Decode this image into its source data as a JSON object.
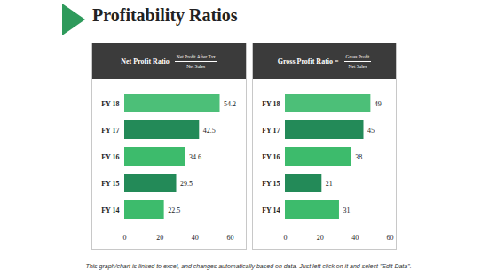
{
  "title": "Profitability Ratios",
  "caption": "This graph/chart is linked to excel, and changes automatically based on data. Just left click on it and select \"Edit Data\".",
  "chart_data": [
    {
      "type": "bar",
      "title": "Net Profit Ratio",
      "annotations": [
        "Net Profit After Tax",
        "Net Sales"
      ],
      "orientation": "horizontal",
      "categories": [
        "FY 18",
        "FY 17",
        "FY 16",
        "FY 15",
        "FY 14"
      ],
      "values": [
        54.2,
        42.5,
        34.6,
        29.5,
        22.5
      ],
      "colors": [
        "#4cbf78",
        "#238a58",
        "#3dbb6c",
        "#238a58",
        "#3dbb6c"
      ],
      "xlim": [
        0,
        60
      ],
      "xticks": [
        0,
        20,
        40,
        60
      ],
      "grid": false,
      "data_labels": true
    },
    {
      "type": "bar",
      "title": "Gross Profit Ratio =",
      "annotations": [
        "Gross Profit",
        "Net Sales"
      ],
      "orientation": "horizontal",
      "categories": [
        "FY 18",
        "FY 17",
        "FY 16",
        "FY 15",
        "FY 14"
      ],
      "values": [
        49,
        45,
        38,
        21,
        31
      ],
      "colors": [
        "#4cbf78",
        "#238a58",
        "#3dbb6c",
        "#238a58",
        "#3dbb6c"
      ],
      "xlim": [
        0,
        60
      ],
      "xticks": [
        0,
        20,
        40,
        60
      ],
      "grid": false,
      "data_labels": true
    }
  ]
}
